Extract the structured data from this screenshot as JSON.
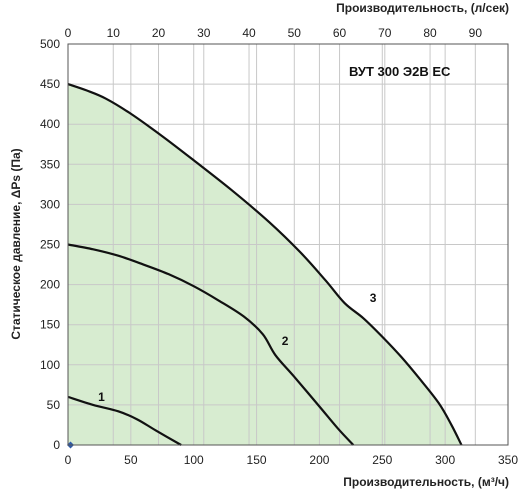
{
  "chart_data": {
    "type": "line",
    "title": "ВУТ 300 Э2В ЕС",
    "xlabel": "Производительность, (м³/ч)",
    "x2label": "Производительность, (л/сек)",
    "ylabel": "Статическое давление, ΔPs (Па)",
    "xlim": [
      0,
      350
    ],
    "x2lim": [
      0,
      97.22
    ],
    "ylim": [
      0,
      500
    ],
    "xticks": [
      0,
      50,
      100,
      150,
      200,
      250,
      300,
      350
    ],
    "x2ticks": [
      0,
      10,
      20,
      30,
      40,
      50,
      60,
      70,
      80,
      90
    ],
    "yticks": [
      0,
      50,
      100,
      150,
      200,
      250,
      300,
      350,
      400,
      450,
      500
    ],
    "grid": true,
    "series": [
      {
        "name": "1",
        "x": [
          0,
          20,
          40,
          55,
          70,
          90
        ],
        "y": [
          60,
          50,
          42,
          32,
          18,
          0
        ]
      },
      {
        "name": "2",
        "x": [
          0,
          20,
          40,
          60,
          80,
          100,
          120,
          140,
          155,
          165,
          180,
          200,
          215,
          227
        ],
        "y": [
          250,
          244,
          236,
          225,
          213,
          198,
          180,
          160,
          138,
          112,
          85,
          48,
          20,
          0
        ]
      },
      {
        "name": "3",
        "x": [
          0,
          15,
          30,
          50,
          75,
          100,
          130,
          160,
          185,
          205,
          220,
          235,
          250,
          265,
          280,
          295,
          305,
          313
        ],
        "y": [
          450,
          442,
          432,
          413,
          385,
          355,
          318,
          278,
          240,
          205,
          177,
          158,
          135,
          110,
          82,
          52,
          25,
          0
        ]
      }
    ],
    "labels": [
      {
        "text": "1",
        "x": 24,
        "y": 55
      },
      {
        "text": "2",
        "x": 170,
        "y": 125
      },
      {
        "text": "3",
        "x": 240,
        "y": 178
      }
    ],
    "colors": {
      "fill": "#d7ecd0",
      "curve": "#111111",
      "grid": "#c8c8c8",
      "marker": "#2f5aa8"
    }
  }
}
